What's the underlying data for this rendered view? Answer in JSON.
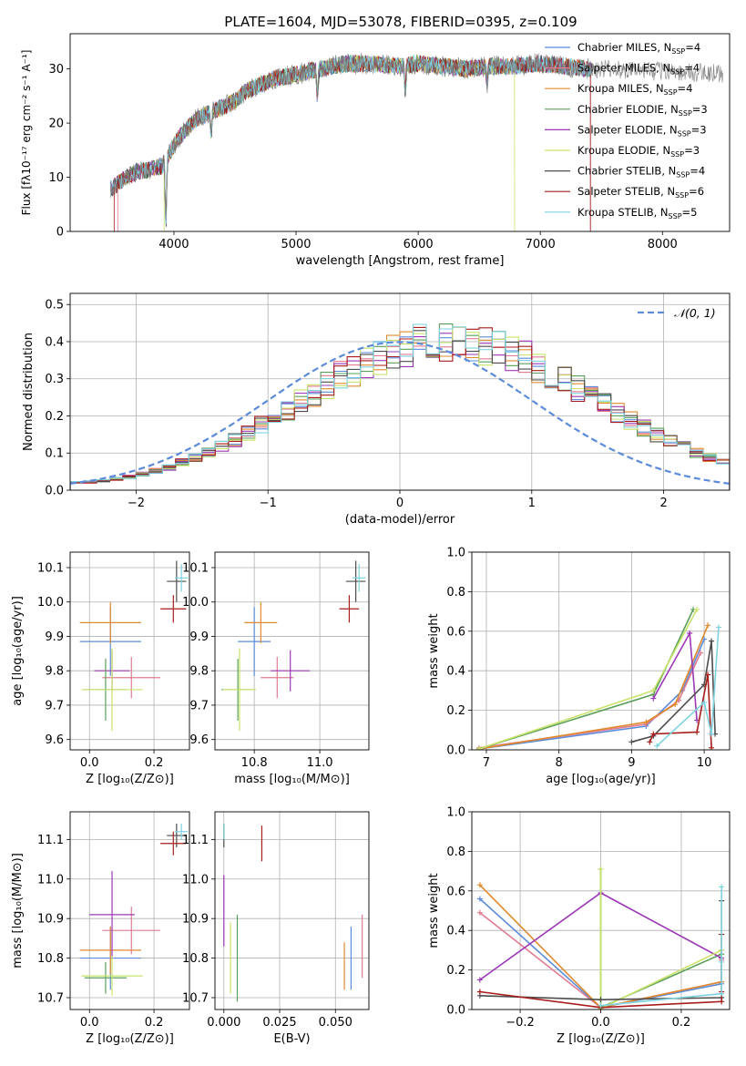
{
  "title": "PLATE=1604, MJD=53078, FIBERID=0395, z=0.109",
  "colors": {
    "Chabrier MILES": "#5b8bd9",
    "Salpeter MILES": "#e07b91",
    "Kroupa MILES": "#e08a2e",
    "Chabrier ELODIE": "#5aa05a",
    "Salpeter ELODIE": "#9b38b5",
    "Kroupa ELODIE": "#c9e36a",
    "Chabrier STELIB": "#4d4d4d",
    "Salpeter STELIB": "#a81c1c",
    "Kroupa STELIB": "#7fd3e0"
  },
  "chart_data": [
    {
      "id": "spectrum",
      "type": "line",
      "title": "PLATE=1604, MJD=53078, FIBERID=0395, z=0.109",
      "xlabel": "wavelength [Angstrom, rest frame]",
      "ylabel": "Flux [fλ10⁻¹⁷ erg cm⁻² s⁻¹ A⁻¹]",
      "xlim": [
        3150,
        8550
      ],
      "ylim": [
        0,
        36.5
      ],
      "xticks": [
        "4000",
        "5000",
        "6000",
        "7000",
        "8000"
      ],
      "yticks": [
        "0",
        "10",
        "20",
        "30"
      ],
      "legend": [
        "Chabrier MILES, N_SSP=4",
        "Salpeter MILES, N_SSP=4",
        "Kroupa MILES, N_SSP=4",
        "Chabrier ELODIE, N_SSP=3",
        "Salpeter ELODIE, N_SSP=3",
        "Kroupa ELODIE, N_SSP=3",
        "Chabrier STELIB, N_SSP=4",
        "Salpeter STELIB, N_SSP=6",
        "Kroupa STELIB, N_SSP=5"
      ],
      "legend_labels": [
        {
          "main": "Chabrier MILES, N",
          "sub": "SSP",
          "tail": "=4"
        },
        {
          "main": "Salpeter MILES, N",
          "sub": "SSP",
          "tail": "=4"
        },
        {
          "main": "Kroupa MILES, N",
          "sub": "SSP",
          "tail": "=4"
        },
        {
          "main": "Chabrier ELODIE, N",
          "sub": "SSP",
          "tail": "=3"
        },
        {
          "main": "Salpeter ELODIE, N",
          "sub": "SSP",
          "tail": "=3"
        },
        {
          "main": "Kroupa ELODIE, N",
          "sub": "SSP",
          "tail": "=3"
        },
        {
          "main": "Chabrier STELIB, N",
          "sub": "SSP",
          "tail": "=4"
        },
        {
          "main": "Salpeter STELIB, N",
          "sub": "SSP",
          "tail": "=6"
        },
        {
          "main": "Kroupa STELIB, N",
          "sub": "SSP",
          "tail": "=5"
        }
      ],
      "legend_position": "upper right",
      "continuum": {
        "x": [
          3500,
          3600,
          3700,
          3800,
          3900,
          4000,
          4100,
          4200,
          4300,
          4400,
          4500,
          4600,
          4800,
          5000,
          5200,
          5400,
          5600,
          5800,
          6000,
          6200,
          6400,
          6600,
          6800,
          7000,
          7200,
          7400
        ],
        "y": [
          8,
          10,
          11,
          11.5,
          12,
          16,
          19,
          21,
          22,
          23,
          24,
          26,
          28,
          29,
          30,
          31,
          31,
          30.5,
          31,
          30.5,
          30,
          30.5,
          30.5,
          31,
          30.5,
          30
        ]
      },
      "features": [
        {
          "x": 3934,
          "depth": 12
        },
        {
          "x": 4304,
          "depth": 4
        },
        {
          "x": 5175,
          "depth": 5
        },
        {
          "x": 5895,
          "depth": 5
        },
        {
          "x": 6565,
          "depth": 3
        }
      ],
      "model_cutoffs": [
        {
          "model": "Salpeter MILES",
          "xmin": 3540,
          "xmax": 7410
        },
        {
          "model": "Kroupa ELODIE",
          "xmin": 3920,
          "xmax": 6790
        },
        {
          "model": "Salpeter STELIB",
          "xmin": 3510,
          "xmax": 7410
        }
      ],
      "grid": false
    },
    {
      "id": "residuals",
      "type": "bar",
      "xlabel": "(data-model)/error",
      "ylabel": "Normed distribution",
      "xlim": [
        -2.5,
        2.5
      ],
      "ylim": [
        0,
        0.53
      ],
      "xticks": [
        "−2",
        "−1",
        "0",
        "1",
        "2"
      ],
      "yticks": [
        "0.0",
        "0.1",
        "0.2",
        "0.3",
        "0.4",
        "0.5"
      ],
      "bin_width": 0.1,
      "bin_start": -2.5,
      "histogram_values": [
        0.02,
        0.022,
        0.025,
        0.03,
        0.036,
        0.043,
        0.052,
        0.062,
        0.074,
        0.087,
        0.102,
        0.118,
        0.136,
        0.155,
        0.175,
        0.196,
        0.218,
        0.24,
        0.262,
        0.284,
        0.305,
        0.325,
        0.343,
        0.359,
        0.373,
        0.384,
        0.392,
        0.397,
        0.399,
        0.398,
        0.395,
        0.389,
        0.38,
        0.368,
        0.353,
        0.336,
        0.317,
        0.296,
        0.274,
        0.252,
        0.23,
        0.209,
        0.188,
        0.168,
        0.149,
        0.131,
        0.115,
        0.1,
        0.086,
        0.073
      ],
      "normal_curve": {
        "name": "N(0,1)",
        "style": "dashed"
      },
      "legend_label": "𝒩(0, 1)",
      "legend_position": "upper right",
      "grid": true
    },
    {
      "id": "age_vs_Z",
      "type": "scatter",
      "xlabel": "Z [log₁₀(Z/Z⊙)]",
      "ylabel": "age  [log₁₀(age/yr)]",
      "xlim": [
        -0.06,
        0.31
      ],
      "ylim": [
        9.57,
        10.145
      ],
      "xticks": [
        "0.0",
        "0.2"
      ],
      "yticks": [
        "9.6",
        "9.7",
        "9.8",
        "9.9",
        "10.0",
        "10.1"
      ],
      "points": [
        {
          "model": "Chabrier MILES",
          "x": 0.065,
          "xerr": 0.095,
          "y": 9.885,
          "yerr": 0.1
        },
        {
          "model": "Kroupa MILES",
          "x": 0.065,
          "xerr": 0.095,
          "y": 9.94,
          "yerr": 0.06
        },
        {
          "model": "Salpeter MILES",
          "x": 0.13,
          "xerr": 0.09,
          "y": 9.78,
          "yerr": 0.06
        },
        {
          "model": "Salpeter ELODIE",
          "x": 0.07,
          "xerr": 0.055,
          "y": 9.8,
          "yerr": 0.06
        },
        {
          "model": "Chabrier ELODIE",
          "x": 0.05,
          "xerr": 0.065,
          "y": 9.745,
          "yerr": 0.09
        },
        {
          "model": "Kroupa ELODIE",
          "x": 0.07,
          "xerr": 0.095,
          "y": 9.745,
          "yerr": 0.12
        },
        {
          "model": "Chabrier STELIB",
          "x": 0.27,
          "xerr": 0.03,
          "y": 10.06,
          "yerr": 0.06
        },
        {
          "model": "Salpeter STELIB",
          "x": 0.26,
          "xerr": 0.04,
          "y": 9.98,
          "yerr": 0.04
        },
        {
          "model": "Kroupa STELIB",
          "x": 0.285,
          "xerr": 0.02,
          "y": 10.07,
          "yerr": 0.04
        }
      ],
      "grid": true
    },
    {
      "id": "age_vs_mass",
      "type": "scatter",
      "xlabel": "mass [log₁₀(M/M⊙)]",
      "ylabel": "",
      "xlim": [
        10.68,
        11.15
      ],
      "ylim": [
        9.57,
        10.145
      ],
      "xticks": [
        "10.8",
        "11.0"
      ],
      "yticks": [
        "9.6",
        "9.7",
        "9.8",
        "9.9",
        "10.0",
        "10.1"
      ],
      "points": [
        {
          "model": "Chabrier MILES",
          "x": 10.8,
          "xerr": 0.05,
          "y": 9.885,
          "yerr": 0.1
        },
        {
          "model": "Kroupa MILES",
          "x": 10.82,
          "xerr": 0.05,
          "y": 9.94,
          "yerr": 0.06
        },
        {
          "model": "Salpeter MILES",
          "x": 10.87,
          "xerr": 0.05,
          "y": 9.78,
          "yerr": 0.06
        },
        {
          "model": "Salpeter ELODIE",
          "x": 10.91,
          "xerr": 0.06,
          "y": 9.8,
          "yerr": 0.06
        },
        {
          "model": "Chabrier ELODIE",
          "x": 10.75,
          "xerr": 0.05,
          "y": 9.745,
          "yerr": 0.09
        },
        {
          "model": "Kroupa ELODIE",
          "x": 10.755,
          "xerr": 0.05,
          "y": 9.745,
          "yerr": 0.12
        },
        {
          "model": "Chabrier STELIB",
          "x": 11.11,
          "xerr": 0.03,
          "y": 10.06,
          "yerr": 0.06
        },
        {
          "model": "Salpeter STELIB",
          "x": 11.09,
          "xerr": 0.03,
          "y": 9.98,
          "yerr": 0.04
        },
        {
          "model": "Kroupa STELIB",
          "x": 11.12,
          "xerr": 0.02,
          "y": 10.07,
          "yerr": 0.04
        }
      ],
      "grid": true
    },
    {
      "id": "weight_vs_age",
      "type": "line",
      "xlabel": "age  [log₁₀(age/yr)]",
      "ylabel": "mass weight",
      "xlim": [
        6.8,
        10.35
      ],
      "ylim": [
        0,
        1
      ],
      "xticks": [
        "7",
        "8",
        "9",
        "10"
      ],
      "yticks": [
        "0.0",
        "0.2",
        "0.4",
        "0.6",
        "0.8",
        "1.0"
      ],
      "series": [
        {
          "model": "Chabrier MILES",
          "x": [
            6.9,
            9.2,
            9.7,
            10.0
          ],
          "y": [
            0.005,
            0.12,
            0.3,
            0.56
          ]
        },
        {
          "model": "Salpeter MILES",
          "x": [
            6.9,
            9.2,
            9.65,
            9.95
          ],
          "y": [
            0.01,
            0.13,
            0.25,
            0.49
          ]
        },
        {
          "model": "Kroupa MILES",
          "x": [
            6.9,
            9.2,
            9.6,
            10.05
          ],
          "y": [
            0.005,
            0.14,
            0.23,
            0.63
          ]
        },
        {
          "model": "Chabrier ELODIE",
          "x": [
            6.9,
            9.3,
            9.85
          ],
          "y": [
            0.005,
            0.28,
            0.71
          ]
        },
        {
          "model": "Salpeter ELODIE",
          "x": [
            9.3,
            9.8,
            9.9
          ],
          "y": [
            0.26,
            0.59,
            0.15
          ]
        },
        {
          "model": "Kroupa ELODIE",
          "x": [
            6.9,
            9.3,
            9.9
          ],
          "y": [
            0.005,
            0.3,
            0.71
          ]
        },
        {
          "model": "Chabrier STELIB",
          "x": [
            9.0,
            9.3,
            10.0,
            10.1,
            10.15
          ],
          "y": [
            0.04,
            0.07,
            0.33,
            0.55,
            0.08
          ]
        },
        {
          "model": "Salpeter STELIB",
          "x": [
            9.25,
            9.3,
            9.9,
            10.05,
            10.1
          ],
          "y": [
            0.04,
            0.08,
            0.09,
            0.38,
            0.01
          ]
        },
        {
          "model": "Kroupa STELIB",
          "x": [
            9.35,
            10.0,
            10.1,
            10.2
          ],
          "y": [
            0.02,
            0.24,
            0.08,
            0.62
          ]
        }
      ],
      "grid": true
    },
    {
      "id": "mass_vs_Z",
      "type": "scatter",
      "xlabel": "Z [log₁₀(Z/Z⊙)]",
      "ylabel": "mass [log₁₀(M/M⊙)]",
      "xlim": [
        -0.06,
        0.31
      ],
      "ylim": [
        10.67,
        11.17
      ],
      "xticks": [
        "0.0",
        "0.2"
      ],
      "yticks": [
        "10.7",
        "10.8",
        "10.9",
        "11.0",
        "11.1"
      ],
      "points": [
        {
          "model": "Chabrier MILES",
          "x": 0.065,
          "xerr": 0.095,
          "y": 10.8,
          "yerr": 0.08
        },
        {
          "model": "Kroupa MILES",
          "x": 0.065,
          "xerr": 0.095,
          "y": 10.82,
          "yerr": 0.06
        },
        {
          "model": "Salpeter MILES",
          "x": 0.13,
          "xerr": 0.09,
          "y": 10.87,
          "yerr": 0.06
        },
        {
          "model": "Salpeter ELODIE",
          "x": 0.07,
          "xerr": 0.07,
          "y": 10.91,
          "yerr": 0.11
        },
        {
          "model": "Chabrier ELODIE",
          "x": 0.05,
          "xerr": 0.065,
          "y": 10.75,
          "yerr": 0.04
        },
        {
          "model": "Kroupa ELODIE",
          "x": 0.07,
          "xerr": 0.095,
          "y": 10.755,
          "yerr": 0.05
        },
        {
          "model": "Chabrier STELIB",
          "x": 0.27,
          "xerr": 0.03,
          "y": 11.11,
          "yerr": 0.03
        },
        {
          "model": "Salpeter STELIB",
          "x": 0.26,
          "xerr": 0.04,
          "y": 11.09,
          "yerr": 0.03
        },
        {
          "model": "Kroupa STELIB",
          "x": 0.285,
          "xerr": 0.02,
          "y": 11.12,
          "yerr": 0.02
        }
      ],
      "grid": true
    },
    {
      "id": "mass_vs_ebv",
      "type": "scatter",
      "xlabel": "E(B-V)",
      "ylabel": "",
      "xlim": [
        -0.004,
        0.065
      ],
      "ylim": [
        10.67,
        11.17
      ],
      "xticks": [
        "0.000",
        "0.025",
        "0.050"
      ],
      "yticks": [
        "10.7",
        "10.8",
        "10.9",
        "11.0",
        "11.1"
      ],
      "points": [
        {
          "model": "Chabrier MILES",
          "x": 0.057,
          "xerr": 0,
          "y": 10.8,
          "yerr": 0.08
        },
        {
          "model": "Kroupa MILES",
          "x": 0.054,
          "xerr": 0,
          "y": 10.78,
          "yerr": 0.06
        },
        {
          "model": "Salpeter MILES",
          "x": 0.062,
          "xerr": 0,
          "y": 10.83,
          "yerr": 0.08
        },
        {
          "model": "Salpeter ELODIE",
          "x": 0.0,
          "xerr": 0,
          "y": 10.92,
          "yerr": 0.09
        },
        {
          "model": "Chabrier ELODIE",
          "x": 0.006,
          "xerr": 0,
          "y": 10.8,
          "yerr": 0.11
        },
        {
          "model": "Kroupa ELODIE",
          "x": 0.003,
          "xerr": 0,
          "y": 10.8,
          "yerr": 0.09
        },
        {
          "model": "Chabrier STELIB",
          "x": 0.0,
          "xerr": 0,
          "y": 11.11,
          "yerr": 0.03
        },
        {
          "model": "Salpeter STELIB",
          "x": 0.017,
          "xerr": 0,
          "y": 11.09,
          "yerr": 0.045
        },
        {
          "model": "Kroupa STELIB",
          "x": 0.0,
          "xerr": 0,
          "y": 11.12,
          "yerr": 0.02
        }
      ],
      "grid": true
    },
    {
      "id": "weight_vs_Z",
      "type": "line",
      "xlabel": "Z [log₁₀(Z/Z⊙)]",
      "ylabel": "mass weight",
      "xlim": [
        -0.32,
        0.32
      ],
      "ylim": [
        0,
        1
      ],
      "xticks": [
        "−0.2",
        "0.0",
        "0.2"
      ],
      "yticks": [
        "0.0",
        "0.2",
        "0.4",
        "0.6",
        "0.8",
        "1.0"
      ],
      "series": [
        {
          "model": "Chabrier MILES",
          "x": [
            -0.3,
            0.0,
            0.3,
            0.3
          ],
          "y": [
            0.56,
            0.01,
            0.13,
            0.3
          ]
        },
        {
          "model": "Salpeter MILES",
          "x": [
            -0.3,
            0.0,
            0.3,
            0.3
          ],
          "y": [
            0.49,
            0.01,
            0.14,
            0.25
          ]
        },
        {
          "model": "Kroupa MILES",
          "x": [
            -0.3,
            0.0,
            0.3
          ],
          "y": [
            0.63,
            0.01,
            0.14
          ]
        },
        {
          "model": "Chabrier ELODIE",
          "x": [
            0.0,
            0.0,
            0.3
          ],
          "y": [
            0.71,
            0.01,
            0.28
          ]
        },
        {
          "model": "Salpeter ELODIE",
          "x": [
            -0.3,
            0.0,
            0.3
          ],
          "y": [
            0.15,
            0.59,
            0.26
          ]
        },
        {
          "model": "Kroupa ELODIE",
          "x": [
            0.0,
            0.0,
            0.3
          ],
          "y": [
            0.71,
            0.005,
            0.3
          ]
        },
        {
          "model": "Chabrier STELIB",
          "x": [
            -0.3,
            0.0,
            0.3,
            0.3
          ],
          "y": [
            0.07,
            0.05,
            0.06,
            0.55
          ]
        },
        {
          "model": "Salpeter STELIB",
          "x": [
            -0.3,
            0.0,
            0.3,
            0.3,
            0.3
          ],
          "y": [
            0.09,
            0.01,
            0.04,
            0.38,
            0.09
          ]
        },
        {
          "model": "Kroupa STELIB",
          "x": [
            0.0,
            0.3,
            0.3,
            0.3
          ],
          "y": [
            0.02,
            0.08,
            0.24,
            0.62
          ]
        }
      ],
      "grid": true
    }
  ]
}
